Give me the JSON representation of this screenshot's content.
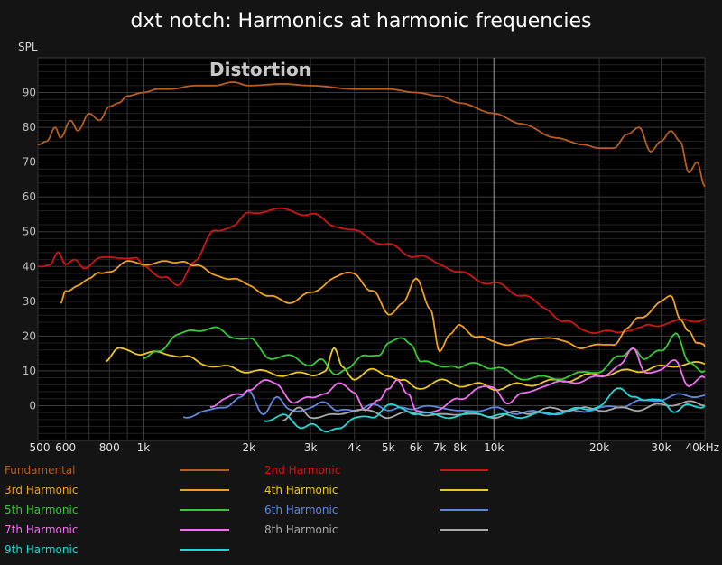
{
  "chart_data": {
    "type": "line",
    "title": "dxt notch: Harmonics at harmonic frequencies",
    "ylabel": "SPL",
    "annotation": "Distortion",
    "x_scale": "log",
    "xlim": [
      500,
      40000
    ],
    "ylim": [
      -10,
      100
    ],
    "grid": true,
    "legend_placement": "bottom",
    "y_ticks": [
      0,
      10,
      20,
      30,
      40,
      50,
      60,
      70,
      80,
      90
    ],
    "x_ticks": [
      {
        "value": 500,
        "label": "500"
      },
      {
        "value": 600,
        "label": "600"
      },
      {
        "value": 800,
        "label": "800"
      },
      {
        "value": 1000,
        "label": "1k"
      },
      {
        "value": 2000,
        "label": "2k"
      },
      {
        "value": 3000,
        "label": "3k"
      },
      {
        "value": 4000,
        "label": "4k"
      },
      {
        "value": 5000,
        "label": "5k"
      },
      {
        "value": 6000,
        "label": "6k"
      },
      {
        "value": 7000,
        "label": "7k"
      },
      {
        "value": 8000,
        "label": "8k"
      },
      {
        "value": 10000,
        "label": "10k"
      },
      {
        "value": 20000,
        "label": "20k"
      },
      {
        "value": 30000,
        "label": "30k"
      },
      {
        "value": 40000,
        "label": "40kHz"
      }
    ],
    "series": [
      {
        "name": "Fundamental",
        "color": "#b85c22",
        "points": [
          [
            500,
            75
          ],
          [
            530,
            76
          ],
          [
            560,
            80
          ],
          [
            580,
            77
          ],
          [
            620,
            82
          ],
          [
            650,
            79
          ],
          [
            700,
            84
          ],
          [
            750,
            82
          ],
          [
            800,
            86
          ],
          [
            850,
            87
          ],
          [
            900,
            89
          ],
          [
            1000,
            90
          ],
          [
            1100,
            91
          ],
          [
            1200,
            91
          ],
          [
            1400,
            92
          ],
          [
            1600,
            92
          ],
          [
            1800,
            93
          ],
          [
            2000,
            92
          ],
          [
            2500,
            92.5
          ],
          [
            3000,
            92
          ],
          [
            4000,
            91
          ],
          [
            5000,
            91
          ],
          [
            6000,
            90
          ],
          [
            7000,
            89
          ],
          [
            8000,
            87
          ],
          [
            10000,
            84
          ],
          [
            12000,
            81
          ],
          [
            15000,
            77
          ],
          [
            18000,
            75
          ],
          [
            20000,
            74
          ],
          [
            22000,
            74
          ],
          [
            24000,
            78
          ],
          [
            26000,
            80
          ],
          [
            28000,
            73
          ],
          [
            30000,
            76
          ],
          [
            32000,
            79
          ],
          [
            34000,
            76
          ],
          [
            36000,
            67
          ],
          [
            38000,
            70
          ],
          [
            40000,
            63
          ]
        ]
      },
      {
        "name": "2nd Harmonic",
        "color": "#d01515",
        "points": [
          [
            500,
            40
          ],
          [
            540,
            41
          ],
          [
            570,
            44
          ],
          [
            600,
            40
          ],
          [
            640,
            42
          ],
          [
            680,
            40
          ],
          [
            750,
            42
          ],
          [
            850,
            43
          ],
          [
            950,
            42
          ],
          [
            1000,
            40
          ],
          [
            1150,
            37
          ],
          [
            1250,
            34
          ],
          [
            1400,
            42
          ],
          [
            1600,
            50
          ],
          [
            1800,
            52
          ],
          [
            2000,
            55
          ],
          [
            2300,
            56.5
          ],
          [
            2600,
            56
          ],
          [
            3000,
            55
          ],
          [
            3500,
            52
          ],
          [
            4000,
            50
          ],
          [
            5000,
            46
          ],
          [
            6000,
            43
          ],
          [
            7000,
            41
          ],
          [
            8000,
            38
          ],
          [
            10000,
            35
          ],
          [
            12000,
            32
          ],
          [
            14000,
            28
          ],
          [
            16000,
            24
          ],
          [
            18000,
            22
          ],
          [
            20000,
            21
          ],
          [
            22000,
            21
          ],
          [
            24000,
            22
          ],
          [
            26000,
            22
          ],
          [
            28000,
            23
          ],
          [
            32000,
            24
          ],
          [
            36000,
            24.5
          ],
          [
            40000,
            25
          ]
        ]
      },
      {
        "name": "3rd Harmonic",
        "color": "#f0a020",
        "points": [
          [
            580,
            29
          ],
          [
            600,
            33
          ],
          [
            650,
            35
          ],
          [
            700,
            36
          ],
          [
            750,
            38
          ],
          [
            800,
            39
          ],
          [
            900,
            41
          ],
          [
            1000,
            41
          ],
          [
            1200,
            41
          ],
          [
            1300,
            42
          ],
          [
            1400,
            40
          ],
          [
            1600,
            38
          ],
          [
            1800,
            36
          ],
          [
            2000,
            35
          ],
          [
            2300,
            31
          ],
          [
            2600,
            30
          ],
          [
            3000,
            32
          ],
          [
            3500,
            37
          ],
          [
            4000,
            38
          ],
          [
            4500,
            33
          ],
          [
            5000,
            26
          ],
          [
            5500,
            30
          ],
          [
            6000,
            36
          ],
          [
            6600,
            28
          ],
          [
            7000,
            16
          ],
          [
            7500,
            20
          ],
          [
            8000,
            23
          ],
          [
            9000,
            20
          ],
          [
            10000,
            18
          ],
          [
            12000,
            18
          ],
          [
            14000,
            20
          ],
          [
            16000,
            18
          ],
          [
            18000,
            17
          ],
          [
            20000,
            17
          ],
          [
            22000,
            18
          ],
          [
            24000,
            22
          ],
          [
            26000,
            25
          ],
          [
            30000,
            30
          ],
          [
            32000,
            31
          ],
          [
            34000,
            25
          ],
          [
            36000,
            22
          ],
          [
            38000,
            18
          ],
          [
            40000,
            17
          ]
        ]
      },
      {
        "name": "4th Harmonic",
        "color": "#ecc623",
        "points": [
          [
            780,
            13
          ],
          [
            850,
            16
          ],
          [
            900,
            16
          ],
          [
            1000,
            15
          ],
          [
            1100,
            15
          ],
          [
            1200,
            15
          ],
          [
            1300,
            14
          ],
          [
            1500,
            12
          ],
          [
            1700,
            11
          ],
          [
            2000,
            10
          ],
          [
            2500,
            9
          ],
          [
            3000,
            9
          ],
          [
            3300,
            10
          ],
          [
            3500,
            16
          ],
          [
            3700,
            11
          ],
          [
            4000,
            8
          ],
          [
            4500,
            10
          ],
          [
            5000,
            9
          ],
          [
            5500,
            7
          ],
          [
            6000,
            5
          ],
          [
            7000,
            7
          ],
          [
            8000,
            6
          ],
          [
            9000,
            6
          ],
          [
            10000,
            5
          ],
          [
            12000,
            6
          ],
          [
            15000,
            7
          ],
          [
            20000,
            9
          ],
          [
            25000,
            10
          ],
          [
            30000,
            11
          ],
          [
            35000,
            12
          ],
          [
            40000,
            12
          ]
        ]
      },
      {
        "name": "5th Harmonic",
        "color": "#38c838",
        "points": [
          [
            1000,
            13
          ],
          [
            1100,
            16
          ],
          [
            1250,
            20
          ],
          [
            1400,
            22
          ],
          [
            1600,
            22
          ],
          [
            1800,
            20
          ],
          [
            2000,
            19
          ],
          [
            2300,
            14
          ],
          [
            2600,
            14
          ],
          [
            3000,
            12
          ],
          [
            3200,
            13
          ],
          [
            3500,
            9
          ],
          [
            3800,
            11
          ],
          [
            4300,
            14
          ],
          [
            4700,
            15
          ],
          [
            5000,
            18
          ],
          [
            5500,
            19
          ],
          [
            5800,
            18
          ],
          [
            6200,
            13
          ],
          [
            7000,
            11
          ],
          [
            7600,
            12
          ],
          [
            8000,
            11
          ],
          [
            9000,
            12
          ],
          [
            10000,
            11
          ],
          [
            12000,
            8
          ],
          [
            15000,
            8
          ],
          [
            20000,
            10
          ],
          [
            23000,
            14
          ],
          [
            25000,
            17
          ],
          [
            27000,
            13
          ],
          [
            30000,
            16
          ],
          [
            33000,
            21
          ],
          [
            36000,
            12
          ],
          [
            40000,
            10
          ]
        ]
      },
      {
        "name": "6th Harmonic",
        "color": "#5f87e0",
        "points": [
          [
            1300,
            -3
          ],
          [
            1500,
            -2
          ],
          [
            1700,
            0
          ],
          [
            1900,
            2
          ],
          [
            2000,
            4
          ],
          [
            2200,
            -2
          ],
          [
            2400,
            2
          ],
          [
            2600,
            -1
          ],
          [
            3000,
            -1
          ],
          [
            3300,
            1
          ],
          [
            3600,
            -1
          ],
          [
            4000,
            -2
          ],
          [
            4500,
            1
          ],
          [
            5000,
            -2
          ],
          [
            5500,
            0
          ],
          [
            6000,
            -1
          ],
          [
            7000,
            0
          ],
          [
            8000,
            -2
          ],
          [
            9000,
            -1
          ],
          [
            10000,
            -1
          ],
          [
            12000,
            -2
          ],
          [
            15000,
            -2
          ],
          [
            20000,
            -1
          ],
          [
            23000,
            0
          ],
          [
            26000,
            1
          ],
          [
            30000,
            2
          ],
          [
            35000,
            3
          ],
          [
            40000,
            3
          ]
        ]
      },
      {
        "name": "7th Harmonic",
        "color": "#f06ef0",
        "points": [
          [
            1550,
            0
          ],
          [
            1700,
            2
          ],
          [
            1900,
            3
          ],
          [
            2000,
            5
          ],
          [
            2200,
            7
          ],
          [
            2400,
            6
          ],
          [
            2700,
            1
          ],
          [
            3000,
            2
          ],
          [
            3300,
            4
          ],
          [
            3600,
            6
          ],
          [
            4000,
            4
          ],
          [
            4300,
            -1
          ],
          [
            4700,
            1
          ],
          [
            5000,
            5
          ],
          [
            5300,
            8
          ],
          [
            5700,
            3
          ],
          [
            6000,
            -2
          ],
          [
            7000,
            -1
          ],
          [
            8000,
            2
          ],
          [
            9000,
            5
          ],
          [
            10000,
            5
          ],
          [
            11000,
            1
          ],
          [
            12000,
            3
          ],
          [
            14000,
            6
          ],
          [
            17000,
            7
          ],
          [
            20000,
            8
          ],
          [
            23000,
            12
          ],
          [
            25000,
            16
          ],
          [
            27000,
            10
          ],
          [
            30000,
            10
          ],
          [
            33000,
            13
          ],
          [
            36000,
            6
          ],
          [
            40000,
            8
          ]
        ]
      },
      {
        "name": "8th Harmonic",
        "color": "#a8a8a8",
        "points": [
          [
            2500,
            -4
          ],
          [
            2800,
            -1
          ],
          [
            3000,
            -3
          ],
          [
            3500,
            -3
          ],
          [
            4000,
            -1
          ],
          [
            4500,
            -2
          ],
          [
            5000,
            -3
          ],
          [
            6000,
            -2
          ],
          [
            7000,
            -3
          ],
          [
            8000,
            -2
          ],
          [
            9000,
            -3
          ],
          [
            10000,
            -3
          ],
          [
            12000,
            -2
          ],
          [
            15000,
            -1
          ],
          [
            20000,
            -1
          ],
          [
            25000,
            -1
          ],
          [
            30000,
            0
          ],
          [
            35000,
            1
          ],
          [
            40000,
            0
          ]
        ]
      },
      {
        "name": "9th Harmonic",
        "color": "#22d8d8",
        "points": [
          [
            2200,
            -4
          ],
          [
            2500,
            -3
          ],
          [
            2800,
            -6
          ],
          [
            3000,
            -5
          ],
          [
            3300,
            -8
          ],
          [
            3600,
            -6
          ],
          [
            4000,
            -4
          ],
          [
            4500,
            -3
          ],
          [
            5000,
            0
          ],
          [
            5500,
            -1
          ],
          [
            6000,
            -2
          ],
          [
            7000,
            -3
          ],
          [
            8000,
            -3
          ],
          [
            9000,
            -2
          ],
          [
            10000,
            -3
          ],
          [
            12000,
            -3
          ],
          [
            15000,
            -2
          ],
          [
            18000,
            -1
          ],
          [
            20000,
            0
          ],
          [
            23000,
            5
          ],
          [
            25000,
            3
          ],
          [
            27000,
            1
          ],
          [
            30000,
            2
          ],
          [
            33000,
            -2
          ],
          [
            36000,
            0
          ],
          [
            40000,
            0
          ]
        ]
      }
    ]
  }
}
